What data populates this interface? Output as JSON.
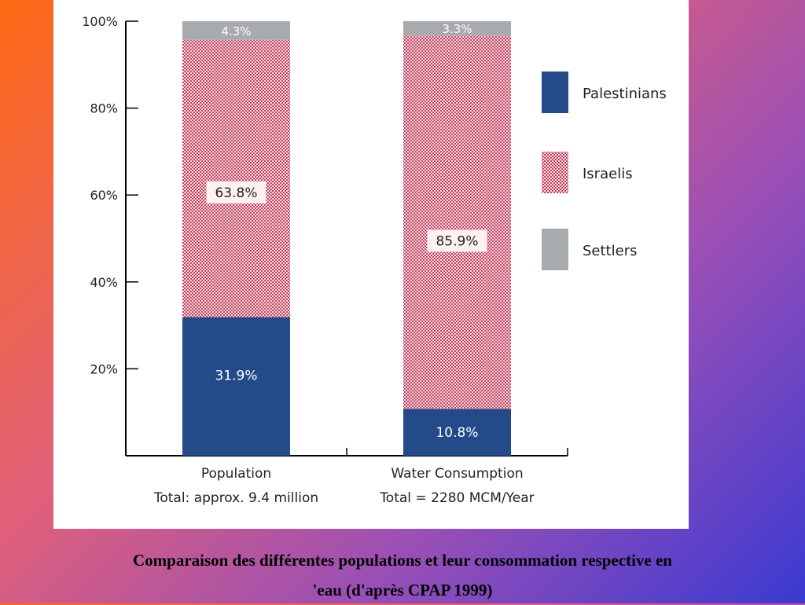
{
  "chart_data": {
    "type": "bar",
    "stacked": true,
    "categories": [
      "Population",
      "Water Consumption"
    ],
    "category_subtitles": [
      "Total: approx. 9.4 million",
      "Total = 2280 MCM/Year"
    ],
    "series": [
      {
        "name": "Palestinians",
        "values": [
          31.9,
          10.8
        ],
        "labels": [
          "31.9%",
          "10.8%"
        ],
        "color": "#244a8a",
        "pattern": "solid"
      },
      {
        "name": "Israelis",
        "values": [
          63.8,
          85.9
        ],
        "labels": [
          "63.8%",
          "85.9%"
        ],
        "color": "#d4506a",
        "pattern": "crosshatch"
      },
      {
        "name": "Settlers",
        "values": [
          4.3,
          3.3
        ],
        "labels": [
          "4.3%",
          "3.3%"
        ],
        "color": "#a8abae",
        "pattern": "solid"
      }
    ],
    "ylim": [
      0,
      100
    ],
    "yticks": [
      20,
      40,
      60,
      80,
      100
    ],
    "ytick_labels": [
      "20%",
      "40%",
      "60%",
      "80%",
      "100%"
    ],
    "grid": false,
    "legend": "right"
  },
  "caption": {
    "line1": "Comparaison des différentes  populations et leur consommation respective en",
    "line2": "'eau (d'après CPAP 1999)"
  }
}
